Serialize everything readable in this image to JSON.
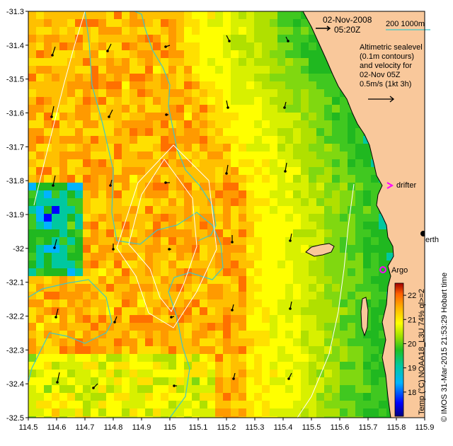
{
  "map": {
    "date": "02-Nov-2008",
    "time": "05:20Z",
    "scale_label": "200  1000m",
    "legend_lines": [
      "Altimetric sealevel",
      "(0.1m contours)",
      "and velocity for",
      "02-Nov 05Z",
      "0.5m/s (1kt 3h)"
    ],
    "drifter_label": "drifter",
    "argo_label": "Argo",
    "perth_label": "Perth",
    "perth_visible": "erth",
    "credit": "© IMOS 31-Mar-2015 21:53:29 Hobart time",
    "colorbar_label": "Temp (°C) NOAA18_L3U 74% ql>=2",
    "colorbar_ticks": [
      "22",
      "21",
      "20",
      "19",
      "18"
    ],
    "colorbar_min": 17,
    "colorbar_max": 22.5,
    "lat_ticks": [
      "-31.3",
      "-31.4",
      "-31.5",
      "-31.6",
      "-31.7",
      "-31.8",
      "-31.9",
      "-32",
      "-32.1",
      "-32.2",
      "-32.3",
      "-32.4",
      "-32.5"
    ],
    "lon_ticks": [
      "114.5",
      "114.6",
      "114.7",
      "114.8",
      "114.9",
      "115",
      "115.1",
      "115.2",
      "115.3",
      "115.4",
      "115.5",
      "115.6",
      "115.7",
      "115.8",
      "115.9"
    ],
    "colors": {
      "land": "#f9c89b",
      "contour": "#3ec7c7",
      "sealevel": "#ffffff",
      "drifter": "#ff00ff",
      "argo": "#ff00ff"
    }
  }
}
